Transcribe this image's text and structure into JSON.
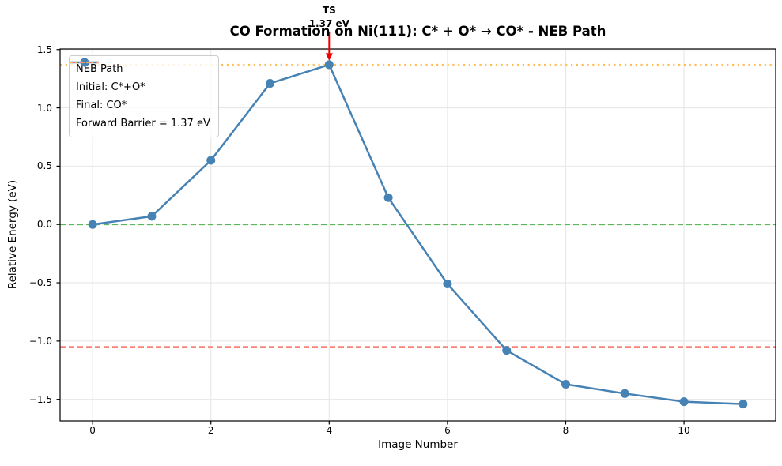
{
  "title": "CO Formation on Ni(111): C* + O* → CO* - NEB Path",
  "annotation": {
    "line1": "TS",
    "line2": "1.37 eV"
  },
  "axes": {
    "xlabel": "Image Number",
    "ylabel": "Relative Energy (eV)",
    "x_tick_labels": [
      "0",
      "2",
      "4",
      "6",
      "8",
      "10"
    ],
    "y_tick_labels": [
      "1.5",
      "1.0",
      "0.5",
      "0.0",
      "−0.5",
      "−1.0",
      "−1.5"
    ]
  },
  "legend": {
    "items": [
      {
        "label": "NEB Path",
        "sample": "line-marker",
        "color": "#4682B4"
      },
      {
        "label": "Initial: C*+O*",
        "sample": "dashed",
        "color": "#5db55d"
      },
      {
        "label": "Final: CO*",
        "sample": "dashed",
        "color": "#f8817a"
      },
      {
        "label": "Forward Barrier = 1.37 eV",
        "sample": "dotted",
        "color": "#ffbe55"
      }
    ]
  },
  "chart_data": {
    "type": "line",
    "title": "CO Formation on Ni(111): C* + O* → CO* - NEB Path",
    "xlabel": "Image Number",
    "ylabel": "Relative Energy (eV)",
    "x": [
      0,
      1,
      2,
      3,
      4,
      5,
      6,
      7,
      8,
      9,
      10,
      11
    ],
    "series": [
      {
        "name": "NEB Path",
        "color": "#4682B4",
        "marker": "circle",
        "values": [
          0.0,
          0.07,
          0.55,
          1.21,
          1.37,
          0.23,
          -0.51,
          -1.08,
          -1.37,
          -1.45,
          -1.52,
          -1.54
        ]
      }
    ],
    "reference_lines": [
      {
        "name": "Initial: C*+O*",
        "value": 0.0,
        "style": "dashed",
        "color": "#5db55d"
      },
      {
        "name": "Final: CO*",
        "value": -1.05,
        "style": "dashed",
        "color": "#f8817a"
      },
      {
        "name": "Forward Barrier = 1.37 eV",
        "value": 1.37,
        "style": "dotted",
        "color": "#ffbe55"
      }
    ],
    "annotation": {
      "text": "TS\n1.37 eV",
      "x": 4,
      "y": 1.37,
      "arrow_color": "#ee0000"
    },
    "x_ticks": [
      0,
      2,
      4,
      6,
      8,
      10
    ],
    "y_ticks": [
      1.5,
      1.0,
      0.5,
      0.0,
      -0.5,
      -1.0,
      -1.5
    ],
    "xlim": [
      -0.55,
      11.55
    ],
    "ylim": [
      -1.685,
      1.505
    ],
    "grid": true,
    "grid_color": "#e7e7e7",
    "legend_position": "upper left"
  }
}
